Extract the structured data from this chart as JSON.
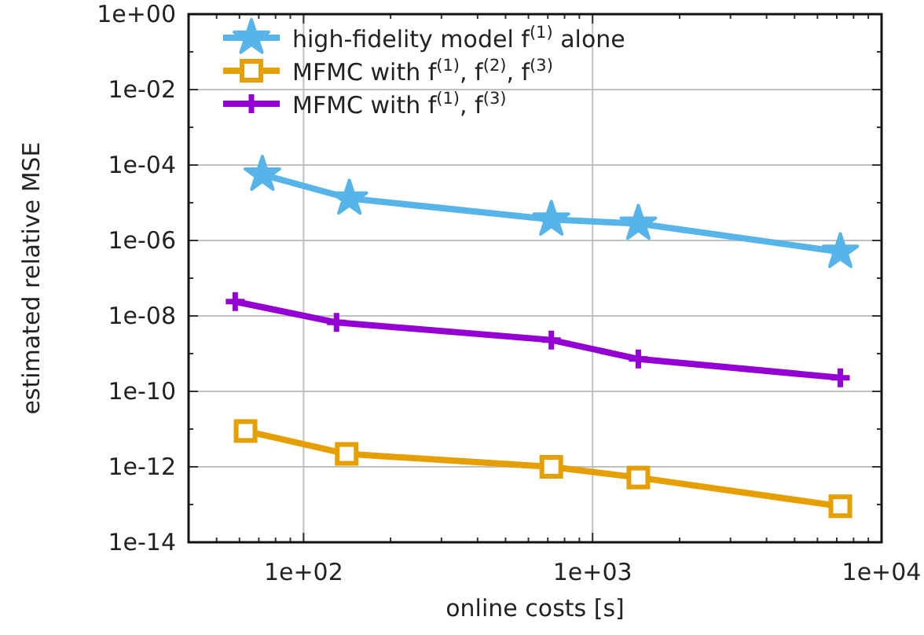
{
  "chart_data": {
    "type": "line",
    "xlabel": "online costs [s]",
    "ylabel": "estimated relative MSE",
    "log": "xy",
    "grid": true,
    "legend": "top left",
    "line_style": "solid",
    "xlim": [
      40,
      10000
    ],
    "ylim": [
      1e-14,
      1
    ],
    "xticks": [
      {
        "value": 40,
        "label": null
      },
      {
        "value": 50,
        "label": null
      },
      {
        "value": 60,
        "label": null
      },
      {
        "value": 70,
        "label": null
      },
      {
        "value": 80,
        "label": null
      },
      {
        "value": 90,
        "label": null
      },
      {
        "value": 100,
        "label": "1e+02"
      },
      {
        "value": 200,
        "label": null
      },
      {
        "value": 300,
        "label": null
      },
      {
        "value": 400,
        "label": null
      },
      {
        "value": 500,
        "label": null
      },
      {
        "value": 600,
        "label": null
      },
      {
        "value": 700,
        "label": null
      },
      {
        "value": 800,
        "label": null
      },
      {
        "value": 900,
        "label": null
      },
      {
        "value": 1000,
        "label": "1e+03"
      },
      {
        "value": 2000,
        "label": null
      },
      {
        "value": 3000,
        "label": null
      },
      {
        "value": 4000,
        "label": null
      },
      {
        "value": 5000,
        "label": null
      },
      {
        "value": 6000,
        "label": null
      },
      {
        "value": 7000,
        "label": null
      },
      {
        "value": 8000,
        "label": null
      },
      {
        "value": 9000,
        "label": null
      },
      {
        "value": 10000,
        "label": "1e+04"
      }
    ],
    "yticks": [
      {
        "value": 1e-14,
        "label": "1e-14"
      },
      {
        "value": 1e-13,
        "label": null
      },
      {
        "value": 1e-12,
        "label": "1e-12"
      },
      {
        "value": 1e-11,
        "label": null
      },
      {
        "value": 1e-10,
        "label": "1e-10"
      },
      {
        "value": 1e-09,
        "label": null
      },
      {
        "value": 1e-08,
        "label": "1e-08"
      },
      {
        "value": 1e-07,
        "label": null
      },
      {
        "value": 1e-06,
        "label": "1e-06"
      },
      {
        "value": 1e-05,
        "label": null
      },
      {
        "value": 0.0001,
        "label": "1e-04"
      },
      {
        "value": 0.001,
        "label": null
      },
      {
        "value": 0.01,
        "label": "1e-02"
      },
      {
        "value": 0.1,
        "label": null
      },
      {
        "value": 1,
        "label": "1e+00"
      }
    ],
    "series": [
      {
        "name": "high-fidelity model f$^{(1)}$ alone",
        "color": "#56b4e9",
        "marker": "star",
        "x": [
          72,
          144,
          720,
          1440,
          7200
        ],
        "values": [
          5.6e-05,
          1.3e-05,
          3.6e-06,
          2.8e-06,
          5e-07
        ]
      },
      {
        "name": "MFMC with f$^{(1)}$, f$^{(2)}$, f$^{(3)}$",
        "color": "#e69f00",
        "marker": "square",
        "x": [
          63,
          141,
          720,
          1440,
          7200
        ],
        "values": [
          8.9e-12,
          2.2e-12,
          1e-12,
          5.2e-13,
          9e-14
        ]
      },
      {
        "name": "MFMC with f$^{(1)}$, f$^{(3)}$",
        "color": "#9400d3",
        "marker": "cross",
        "x": [
          58,
          130,
          720,
          1440,
          7200
        ],
        "values": [
          2.4e-08,
          6.7e-09,
          2.3e-09,
          7.2e-10,
          2.3e-10
        ]
      }
    ]
  }
}
